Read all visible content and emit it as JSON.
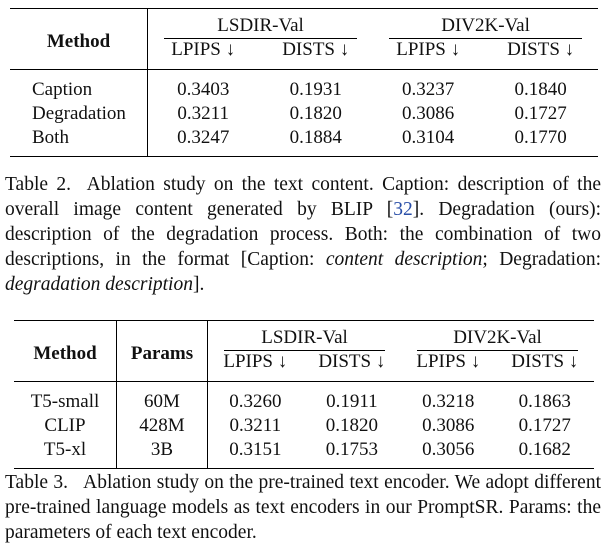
{
  "table2": {
    "header": {
      "method": "Method",
      "groups": [
        "LSDIR-Val",
        "DIV2K-Val"
      ],
      "metrics": [
        "LPIPS ↓",
        "DISTS ↓",
        "LPIPS ↓",
        "DISTS ↓"
      ]
    },
    "rows": [
      [
        "Caption",
        "0.3403",
        "0.1931",
        "0.3237",
        "0.1840"
      ],
      [
        "Degradation",
        "0.3211",
        "0.1820",
        "0.3086",
        "0.1727"
      ],
      [
        "Both",
        "0.3247",
        "0.1884",
        "0.3104",
        "0.1770"
      ]
    ],
    "caption": {
      "label": "Table 2.",
      "parts": [
        "Ablation study on the text content. Caption: description of the overall image content generated by BLIP ",
        "[",
        "32",
        "]",
        ". Degradation (ours): description of the degradation process. Both: the combination of two descriptions, in the format [Caption: ",
        "content description",
        "; Degradation: ",
        "degradation description",
        "]."
      ]
    }
  },
  "table3": {
    "header": {
      "method": "Method",
      "params": "Params",
      "groups": [
        "LSDIR-Val",
        "DIV2K-Val"
      ],
      "metrics": [
        "LPIPS ↓",
        "DISTS ↓",
        "LPIPS ↓",
        "DISTS ↓"
      ]
    },
    "rows": [
      [
        "T5-small",
        "60M",
        "0.3260",
        "0.1911",
        "0.3218",
        "0.1863"
      ],
      [
        "CLIP",
        "428M",
        "0.3211",
        "0.1820",
        "0.3086",
        "0.1727"
      ],
      [
        "T5-xl",
        "3B",
        "0.3151",
        "0.1753",
        "0.3056",
        "0.1682"
      ]
    ],
    "caption": {
      "label": "Table 3.",
      "parts": [
        "Ablation study on the pre-trained text encoder. We adopt different pre-trained language models as text encoders in our PromptSR. Params: the parameters of each text encoder."
      ]
    }
  }
}
